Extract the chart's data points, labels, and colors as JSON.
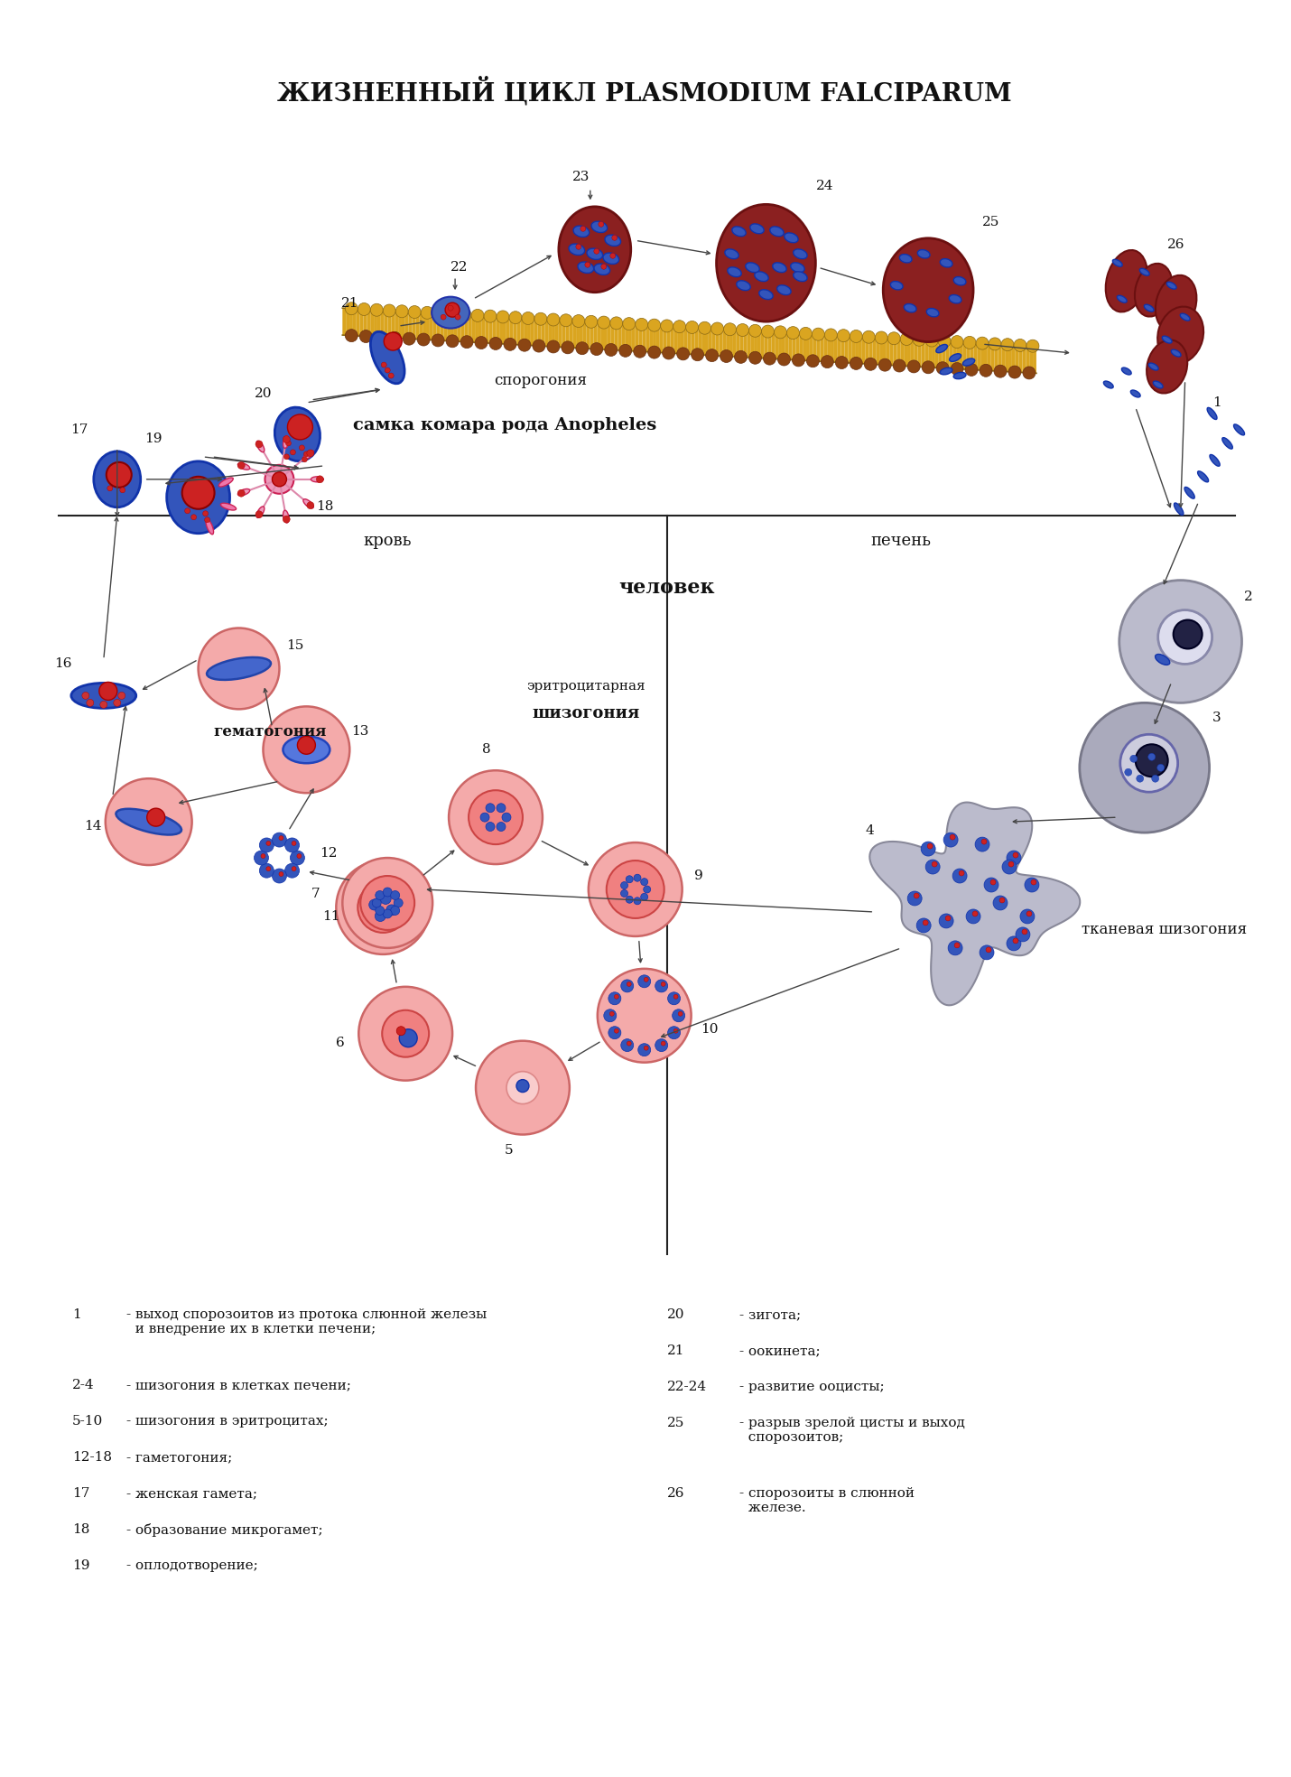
{
  "title": "ЖИЗНЕННЫЙ ЦИКЛ PLASMODIUM FALCIPARUM",
  "title_fontsize": 20,
  "bg_color": "#ffffff",
  "mosquito_label": "самка комара рода Anopheles",
  "sporogonia_label": "спорогония",
  "human_label": "человек",
  "blood_label": "кровь",
  "liver_label": "печень",
  "eritro_label": "эритроцитарная",
  "shizogoniya_label": "шизогония",
  "gematogoniya_label": "гематогония",
  "tkane_label": "тканевая шизогония",
  "legend_left": [
    [
      "1",
      "- выход спорозоитов из протока слюнной железы\n  и внедрение их в клетки печени;"
    ],
    [
      "2-4",
      "- шизогония в клетках печени;"
    ],
    [
      "5-10",
      "- шизогония в эритроцитах;"
    ],
    [
      "12-18",
      "- гаметогония;"
    ],
    [
      "17",
      "- женская гамета;"
    ],
    [
      "18",
      "- образование микрогамет;"
    ],
    [
      "19",
      "- оплодотворение;"
    ]
  ],
  "legend_right": [
    [
      "20",
      "- зигота;"
    ],
    [
      "21",
      "- оокинета;"
    ],
    [
      "22-24",
      "- развитие ооцисты;"
    ],
    [
      "25",
      "- разрыв зрелой цисты и выход\n  спорозоитов;"
    ],
    [
      "26",
      "- спорозоиты в слюнной\n  железе."
    ]
  ]
}
